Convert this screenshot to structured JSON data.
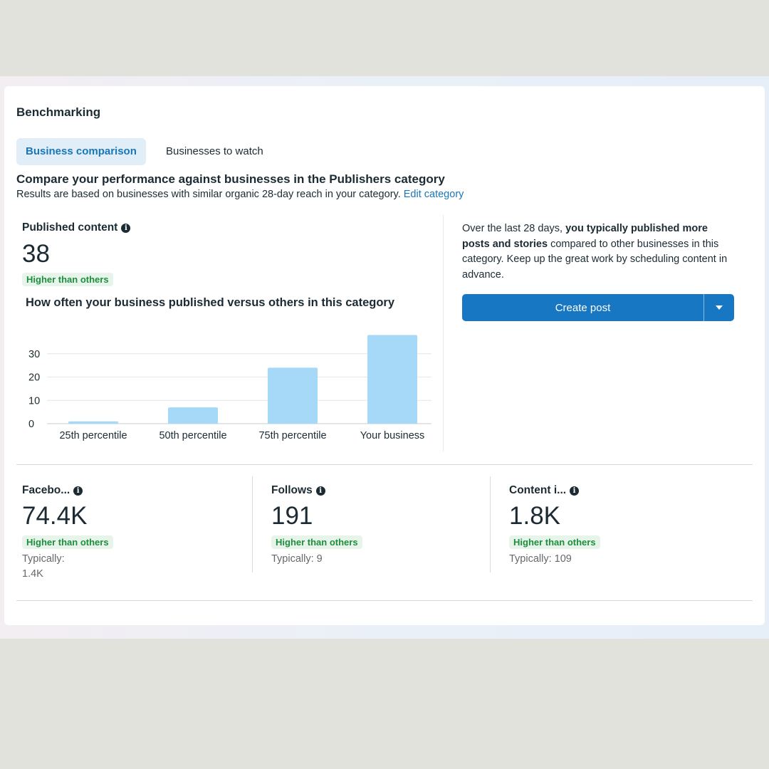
{
  "header": {
    "title": "Benchmarking"
  },
  "tabs": [
    {
      "label": "Business comparison",
      "active": true
    },
    {
      "label": "Businesses to watch",
      "active": false
    }
  ],
  "comparison": {
    "heading": "Compare your performance against businesses in the Publishers category",
    "subheading": "Results are based on businesses with similar organic 28-day reach in your category.",
    "edit_link": "Edit category"
  },
  "published": {
    "label": "Published content",
    "value": "38",
    "badge": "Higher than others",
    "chart_title": "How often your business published versus others in this category"
  },
  "insight": {
    "text_before": "Over the last 28 days, ",
    "text_bold": "you typically published more posts and stories",
    "text_after": " compared to other businesses in this category. Keep up the great work by scheduling content in advance."
  },
  "create_post": {
    "label": "Create post"
  },
  "stats": [
    {
      "label": "Facebo...",
      "value": "74.4K",
      "badge": "Higher than others",
      "typical_label": "Typically:",
      "typical_value": "1.4K"
    },
    {
      "label": "Follows",
      "value": "191",
      "badge": "Higher than others",
      "typical_label": "Typically:",
      "typical_value": "9"
    },
    {
      "label": "Content i...",
      "value": "1.8K",
      "badge": "Higher than others",
      "typical_label": "Typically:",
      "typical_value": "109"
    }
  ],
  "colors": {
    "bar": "#a5d9f7",
    "accent": "#1877c2",
    "badge_text": "#1e8e3e",
    "badge_bg": "#e6f4ea"
  },
  "chart_data": {
    "type": "bar",
    "categories": [
      "25th percentile",
      "50th percentile",
      "75th percentile",
      "Your business"
    ],
    "values": [
      1,
      7,
      24,
      38
    ],
    "yticks": [
      0,
      10,
      20,
      30
    ],
    "ylim": [
      0,
      40
    ],
    "title": "How often your business published versus others in this category",
    "xlabel": "",
    "ylabel": ""
  }
}
